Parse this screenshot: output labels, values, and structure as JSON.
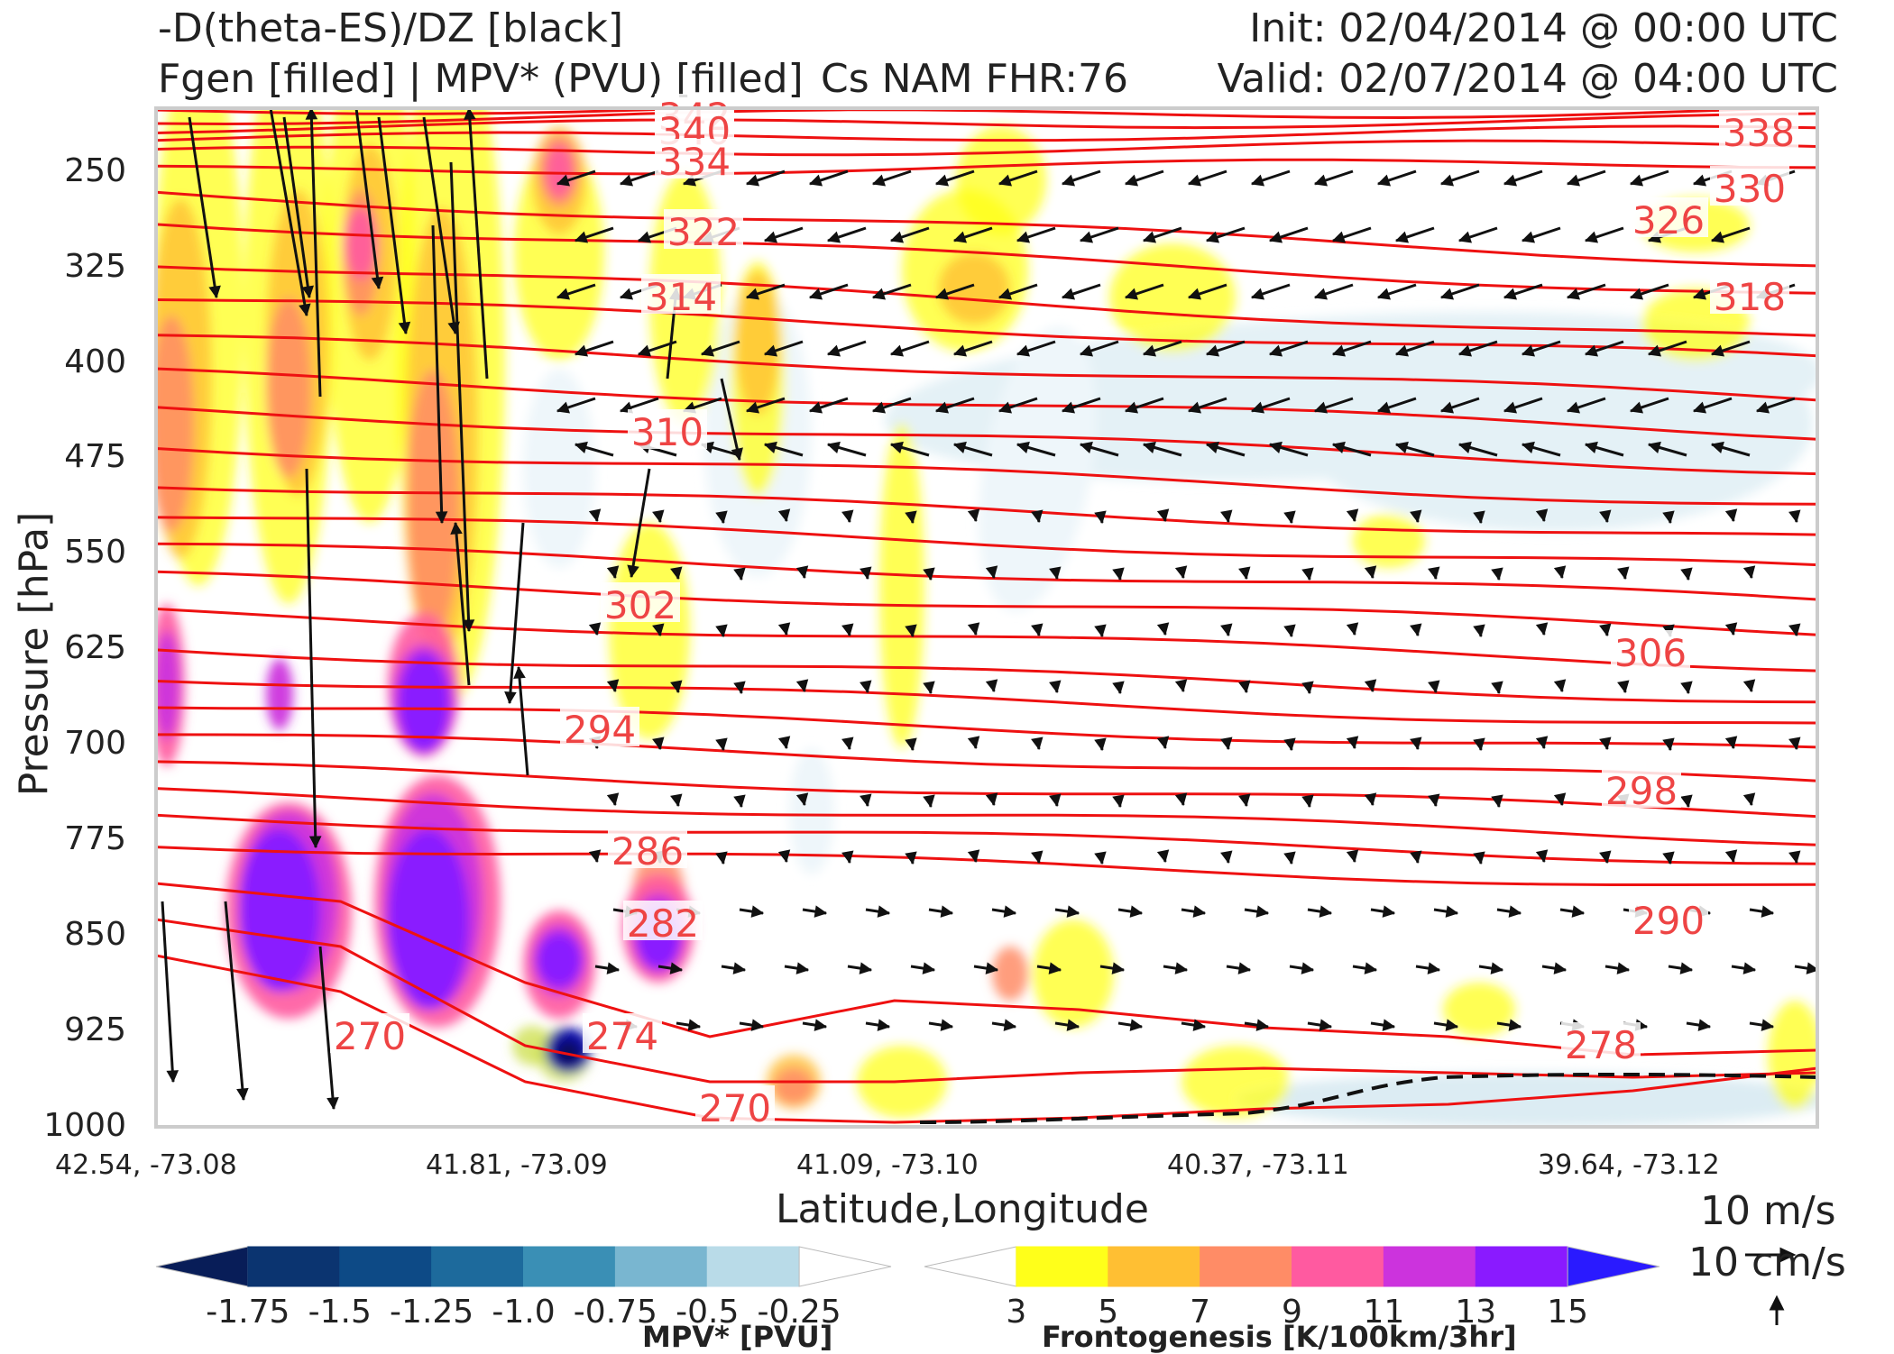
{
  "header": {
    "title_left_1": "-D(theta-ES)/DZ [black]",
    "title_left_2": "Fgen [filled] | MPV* (PVU) [filled]",
    "title_center": "Cs NAM FHR:76",
    "title_right_1": "Init: 02/04/2014 @ 00:00 UTC",
    "title_right_2": "Valid: 02/07/2014 @ 04:00 UTC"
  },
  "chart_data": {
    "type": "contour cross-section",
    "title": "-D(theta-ES)/DZ [black] | Fgen [filled] | MPV* (PVU) [filled]",
    "ylabel": "Pressure [hPa]",
    "ylabel_visible": "Pressure [hPa]",
    "xlabel": "Latitude,Longitude",
    "y_ticks": [
      "250",
      "325",
      "400",
      "475",
      "550",
      "625",
      "700",
      "775",
      "850",
      "925",
      "1000"
    ],
    "y_axis": "inverted pressure, 200-1000 hPa",
    "x_ticks": [
      "42.54, -73.08",
      "41.81, -73.09",
      "41.09, -73.10",
      "40.37, -73.11",
      "39.64, -73.12"
    ],
    "theta_contour_labels": [
      {
        "text": "342",
        "value": 342
      },
      {
        "text": "340",
        "value": 340
      },
      {
        "text": "338",
        "value": 338
      },
      {
        "text": "334",
        "value": 334
      },
      {
        "text": "330",
        "value": 330
      },
      {
        "text": "326",
        "value": 326
      },
      {
        "text": "322",
        "value": 322
      },
      {
        "text": "318",
        "value": 318
      },
      {
        "text": "314",
        "value": 314
      },
      {
        "text": "310",
        "value": 310
      },
      {
        "text": "306",
        "value": 306
      },
      {
        "text": "302",
        "value": 302
      },
      {
        "text": "298",
        "value": 298
      },
      {
        "text": "294",
        "value": 294
      },
      {
        "text": "290",
        "value": 290
      },
      {
        "text": "286",
        "value": 286
      },
      {
        "text": "282",
        "value": 282
      },
      {
        "text": "278",
        "value": 278
      },
      {
        "text": "274",
        "value": 274
      },
      {
        "text": "270",
        "value": 270
      },
      {
        "text": "270",
        "value": 270
      }
    ],
    "mpv_colorbar": {
      "title": "MPV* [PVU]",
      "tick_labels": [
        "-1.75",
        "-1.5",
        "-1.25",
        "-1.0",
        "-0.75",
        "-0.5",
        "-0.25"
      ],
      "colors": [
        "#081d58",
        "#0b3470",
        "#0d4a86",
        "#1d6a9c",
        "#3a8fb5",
        "#79b6d0",
        "#b9dbe8",
        "#ffffff"
      ]
    },
    "fgen_colorbar": {
      "title": "Frontogenesis [K/100km/3hr]",
      "tick_labels": [
        "3",
        "5",
        "7",
        "9",
        "11",
        "13",
        "15"
      ],
      "colors": [
        "#ffffff",
        "#ffff1a",
        "#ffbf33",
        "#ff8c66",
        "#ff5aa0",
        "#cc33dd",
        "#8a1aff",
        "#2a1aff"
      ]
    },
    "vector_keys": [
      "10 m/s",
      "10 cm/s"
    ],
    "colors": {
      "theta_lines": "#ee1111",
      "theta_labels": "#ee4444",
      "vectors": "#111111",
      "mpv_outline": "#8aa0c8"
    }
  }
}
